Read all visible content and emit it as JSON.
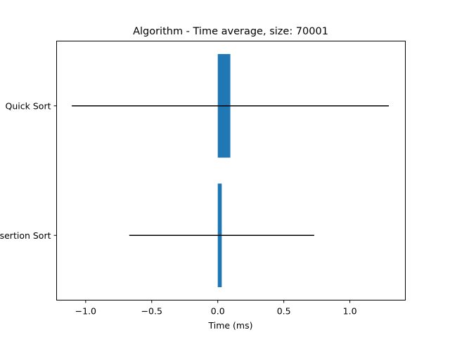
{
  "chart_data": {
    "type": "bar",
    "orientation": "horizontal",
    "title": "Algorithm - Time average, size: 70001",
    "xlabel": "Time (ms)",
    "ylabel": "",
    "categories": [
      "Quick Sort",
      "Insertion Sort"
    ],
    "values": [
      0.095,
      0.03
    ],
    "errors": [
      1.2,
      0.7
    ],
    "xlim": [
      -1.22,
      1.42
    ],
    "xticks": [
      -1.0,
      -0.5,
      0.0,
      0.5,
      1.0
    ],
    "xtick_labels": [
      "−1.0",
      "−0.5",
      "0.0",
      "0.5",
      "1.0"
    ],
    "bar_color": "#1f77b4",
    "error_color": "#000000",
    "grid": false
  }
}
